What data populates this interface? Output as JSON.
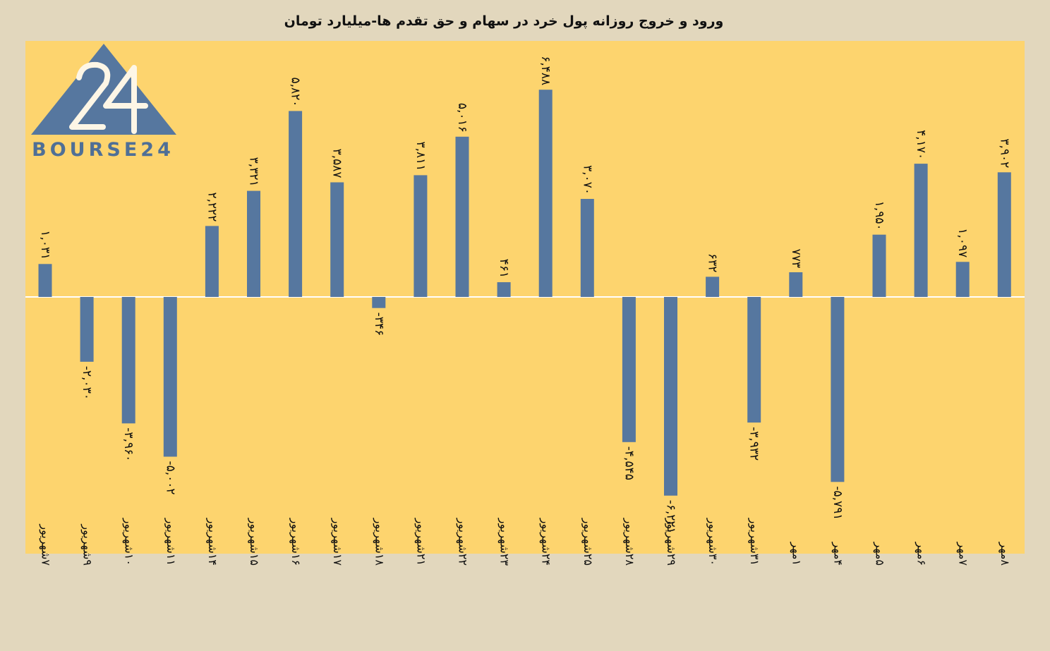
{
  "colors": {
    "background": "#e2d7bd",
    "plot_area": "#fdd46e",
    "bar": "#56779f",
    "logo": "#56779f"
  },
  "logo": {
    "text": "BOURSE24",
    "mark": "24"
  },
  "chart_data": {
    "type": "bar",
    "title": "ورود و خروج روزانه پول خرد در سهام و حق تقدم ها-میلیارد تومان",
    "xlabel": "",
    "ylabel": "",
    "ylim": [
      -7500,
      7000
    ],
    "grid": false,
    "legend": "none",
    "categories": [
      "۷شهریور",
      "۹شهریور",
      "۱۰شهریور",
      "۱۱شهریور",
      "۱۴شهریور",
      "۱۵شهریور",
      "۱۶شهریور",
      "۱۷شهریور",
      "۱۸شهریور",
      "۲۱شهریور",
      "۲۲شهریور",
      "۲۳شهریور",
      "۲۴شهریور",
      "۲۵شهریور",
      "۲۸شهریور",
      "۲۹شهریور",
      "۳۰شهریور",
      "۳۱شهریور",
      "۱مهر",
      "۴مهر",
      "۵مهر",
      "۶مهر",
      "۷مهر",
      "۸مهر"
    ],
    "values": [
      1031,
      -2030,
      -3960,
      -5002,
      2222,
      3321,
      5820,
      3587,
      -346,
      3811,
      5016,
      461,
      6488,
      3070,
      -4545,
      -6221,
      632,
      -3932,
      773,
      -5791,
      1950,
      4170,
      1097,
      3902
    ],
    "value_labels": [
      "۱,۰۳۱",
      "-۲,۰۳۰",
      "-۳,۹۶۰",
      "-۵,۰۰۲",
      "۲,۲۲۲",
      "۳,۳۲۱",
      "۵,۸۲۰",
      "۳,۵۸۷",
      "-۳۴۶",
      "۳,۸۱۱",
      "۵,۰۱۶",
      "۴۶۱",
      "۶,۴۸۸",
      "۳,۰۷۰",
      "-۴,۵۴۵",
      "-۶,۲۲۱",
      "۶۳۲",
      "-۳,۹۳۲",
      "۷۷۳",
      "-۵,۷۹۱",
      "۱,۹۵۰",
      "۴,۱۷۰",
      "۱,۰۹۷",
      "۳,۹۰۲"
    ]
  }
}
